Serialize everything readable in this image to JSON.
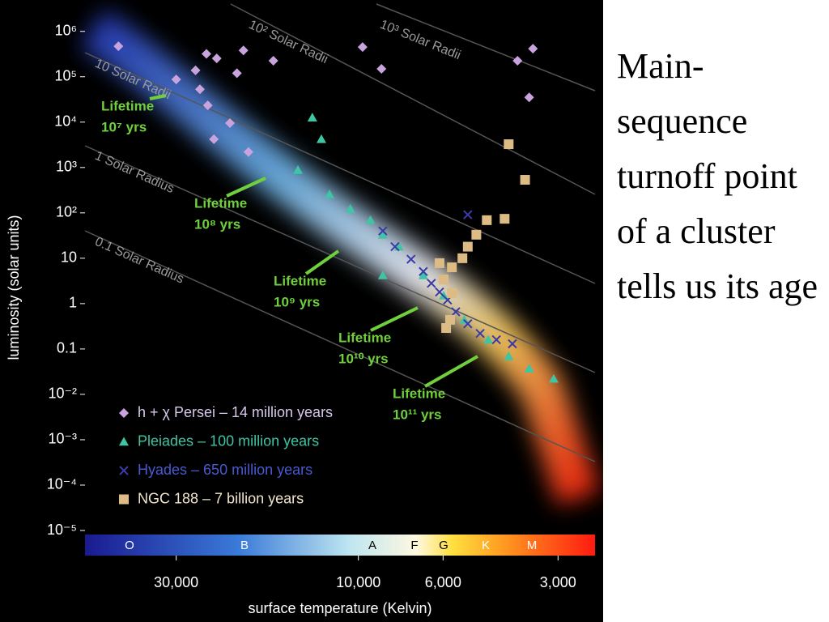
{
  "slide": {
    "text": "Main-sequence turnoff point of a cluster tells us its age"
  },
  "chart_data": {
    "type": "scatter",
    "xscale": "log",
    "yscale": "log",
    "x_label": "surface temperature (Kelvin)",
    "y_label": "luminosity (solar units)",
    "xlim": [
      52000,
      2400
    ],
    "ylim": [
      1e-05,
      4000000
    ],
    "xticks": [
      {
        "value": 30000,
        "label": "30,000"
      },
      {
        "value": 10000,
        "label": "10,000"
      },
      {
        "value": 6000,
        "label": "6,000"
      },
      {
        "value": 3000,
        "label": "3,000"
      }
    ],
    "yticks": [
      {
        "value": 1000000,
        "label": "10⁶"
      },
      {
        "value": 100000,
        "label": "10⁵"
      },
      {
        "value": 10000,
        "label": "10⁴"
      },
      {
        "value": 1000,
        "label": "10³"
      },
      {
        "value": 100,
        "label": "10²"
      },
      10,
      1,
      0.1,
      {
        "value": 0.01,
        "label": "10⁻²"
      },
      {
        "value": 0.001,
        "label": "10⁻³"
      },
      {
        "value": 0.0001,
        "label": "10⁻⁴"
      },
      {
        "value": 1e-05,
        "label": "10⁻⁵"
      }
    ],
    "spectral_classes": [
      "O",
      "B",
      "A",
      "F",
      "G",
      "K",
      "M"
    ],
    "radius_labels": [
      "10² Solar Radii",
      "10³ Solar Radii",
      "10 Solar Radii",
      "1 Solar Radius",
      "0.1 Solar Radius"
    ],
    "annotations": [
      [
        "Lifetime",
        "10⁷ yrs"
      ],
      [
        "Lifetime",
        "10⁸ yrs"
      ],
      [
        "Lifetime",
        "10⁹ yrs"
      ],
      [
        "Lifetime",
        "10¹⁰ yrs"
      ],
      [
        "Lifetime",
        "10¹¹ yrs"
      ]
    ],
    "series": [
      {
        "name": "h + χ Persei – 14 million years",
        "color": "#c9a3de",
        "marker": "diamond",
        "x": [
          42500,
          30000,
          25000,
          26700,
          23500,
          20000,
          20800,
          24800,
          21700,
          23900,
          19400,
          16700,
          9750,
          8700,
          3830,
          3490,
          3570,
          26000
        ],
        "values": [
          470000,
          87000,
          320000,
          138000,
          254000,
          380000,
          120000,
          23400,
          9500,
          4200,
          2200,
          225000,
          450000,
          149000,
          225000,
          415000,
          35000,
          53000
        ]
      },
      {
        "name": "Pleiades – 100 million years",
        "color": "#3fc4a4",
        "marker": "triangle",
        "x": [
          13200,
          12500,
          14400,
          11900,
          10500,
          9300,
          8630,
          7830,
          8630,
          6760,
          5980,
          5280,
          4570,
          4040,
          3570,
          3080
        ],
        "values": [
          12600,
          4200,
          880,
          255,
          122,
          69,
          33,
          18,
          4.2,
          4.2,
          1.5,
          0.44,
          0.16,
          0.069,
          0.037,
          0.022
        ]
      },
      {
        "name": "Hyades – 650 million years",
        "color": "#3a3aa8",
        "marker": "x",
        "x": [
          8630,
          8020,
          7280,
          6760,
          6440,
          6130,
          5840,
          5560,
          5170,
          4800,
          4350,
          3950,
          5170
        ],
        "values": [
          40,
          18,
          9.5,
          5.1,
          2.8,
          1.8,
          1.2,
          0.66,
          0.36,
          0.22,
          0.16,
          0.13,
          91
        ]
      },
      {
        "name": "NGC 188 – 7 billion years",
        "color": "#dcbc84",
        "marker": "square",
        "x": [
          4040,
          3660,
          4140,
          4610,
          4910,
          5170,
          5340,
          5690,
          6130,
          5980,
          5690,
          5750,
          5890
        ],
        "values": [
          3260,
          535,
          74,
          69,
          33,
          18,
          10,
          6.3,
          7.8,
          3.4,
          1.7,
          0.44,
          0.29
        ]
      }
    ]
  }
}
